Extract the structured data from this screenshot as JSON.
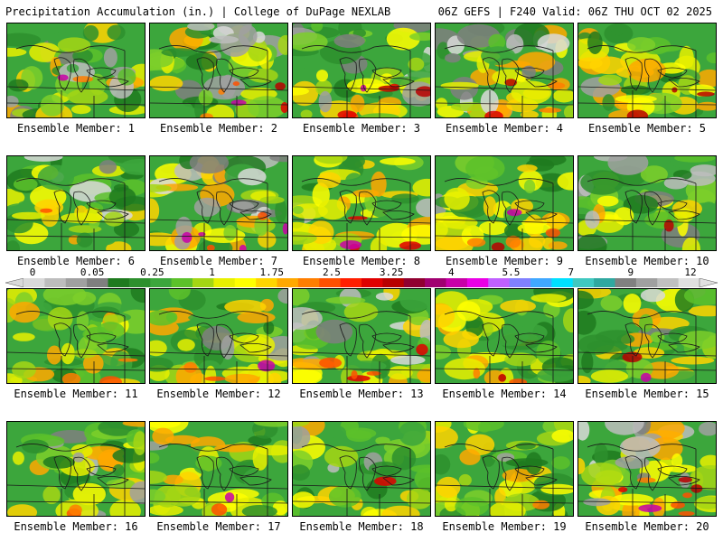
{
  "header": {
    "left_title": "Precipitation Accumulation (in.) | College of DuPage NEXLAB",
    "right_title": "06Z GEFS | F240 Valid: 06Z THU OCT 02 2025"
  },
  "panels": [
    {
      "label": "Ensemble Member: 1"
    },
    {
      "label": "Ensemble Member: 2"
    },
    {
      "label": "Ensemble Member: 3"
    },
    {
      "label": "Ensemble Member: 4"
    },
    {
      "label": "Ensemble Member: 5"
    },
    {
      "label": "Ensemble Member: 6"
    },
    {
      "label": "Ensemble Member: 7"
    },
    {
      "label": "Ensemble Member: 8"
    },
    {
      "label": "Ensemble Member: 9"
    },
    {
      "label": "Ensemble Member: 10"
    },
    {
      "label": "Ensemble Member: 11"
    },
    {
      "label": "Ensemble Member: 12"
    },
    {
      "label": "Ensemble Member: 13"
    },
    {
      "label": "Ensemble Member: 14"
    },
    {
      "label": "Ensemble Member: 15"
    },
    {
      "label": "Ensemble Member: 16"
    },
    {
      "label": "Ensemble Member: 17"
    },
    {
      "label": "Ensemble Member: 18"
    },
    {
      "label": "Ensemble Member: 19"
    },
    {
      "label": "Ensemble Member: 20"
    }
  ],
  "colorbar": {
    "ticks": [
      "0",
      "0.05",
      "0.25",
      "1",
      "1.75",
      "2.5",
      "3.25",
      "4",
      "5.5",
      "7",
      "9",
      "12"
    ],
    "colors": [
      "#d9d9d9",
      "#bdbdbd",
      "#a0a0a0",
      "#7f7f7f",
      "#1e7a1e",
      "#2d8f2d",
      "#3ca63c",
      "#5cc12a",
      "#a4d614",
      "#e8f000",
      "#ffff00",
      "#ffd400",
      "#ffa800",
      "#ff7e00",
      "#ff5000",
      "#ff1e00",
      "#e00000",
      "#b80000",
      "#900030",
      "#a00070",
      "#c800a8",
      "#ea00e6",
      "#c060ff",
      "#8080ff",
      "#40a8ff",
      "#00e0ff",
      "#40c8c0",
      "#30a8a0",
      "#808080",
      "#a0a0a0",
      "#c0c0c0",
      "#e0e0e0"
    ]
  }
}
